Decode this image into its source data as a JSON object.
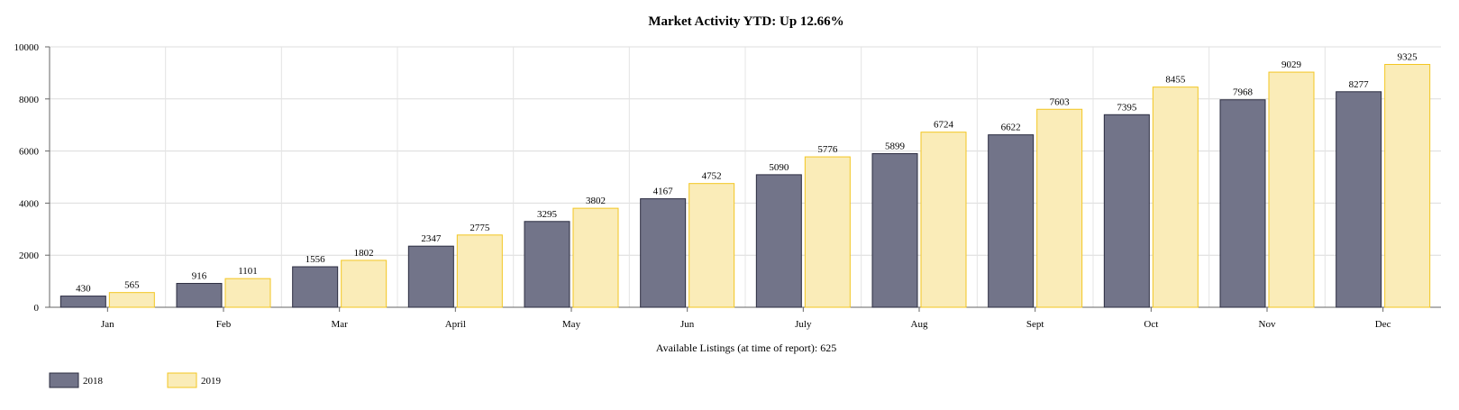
{
  "chart_data": {
    "type": "bar",
    "title": "Market Activity YTD: Up 12.66%",
    "xlabel": "Available Listings (at time of report): 625",
    "ylabel": "",
    "ylim": [
      0,
      10000
    ],
    "yticks": [
      0,
      2000,
      4000,
      6000,
      8000,
      10000
    ],
    "grid": true,
    "legend_position": "bottom-left",
    "categories": [
      "Jan",
      "Feb",
      "Mar",
      "April",
      "May",
      "Jun",
      "July",
      "Aug",
      "Sept",
      "Oct",
      "Nov",
      "Dec"
    ],
    "series": [
      {
        "name": "2018",
        "color": "#727489",
        "stroke": "#2b2c40",
        "values": [
          430,
          916,
          1556,
          2347,
          3295,
          4167,
          5090,
          5899,
          6622,
          7395,
          7968,
          8277
        ]
      },
      {
        "name": "2019",
        "color": "#faecb8",
        "stroke": "#f3c622",
        "values": [
          565,
          1101,
          1802,
          2775,
          3802,
          4752,
          5776,
          6724,
          7603,
          8455,
          9029,
          9325
        ]
      }
    ]
  }
}
